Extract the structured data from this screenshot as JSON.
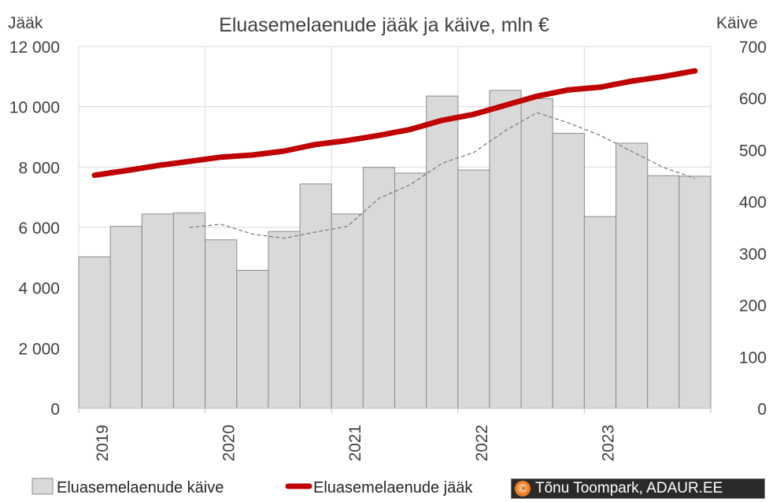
{
  "chart_data": {
    "type": "bar",
    "title": "Eluasemelaenude jääk ja käive, mln €",
    "ylabel": "Jääk",
    "y2label": "Käive",
    "ylim": [
      0,
      12000
    ],
    "y2lim": [
      0,
      700
    ],
    "yticks": [
      "0",
      "2 000",
      "4 000",
      "6 000",
      "8 000",
      "10 000",
      "12 000"
    ],
    "y2ticks": [
      "0",
      "100",
      "200",
      "300",
      "400",
      "500",
      "600",
      "700"
    ],
    "x": [
      "2019 Q1",
      "2019 Q2",
      "2019 Q3",
      "2019 Q4",
      "2020 Q1",
      "2020 Q2",
      "2020 Q3",
      "2020 Q4",
      "2021 Q1",
      "2021 Q2",
      "2021 Q3",
      "2021 Q4",
      "2022 Q1",
      "2022 Q2",
      "2022 Q3",
      "2022 Q4",
      "2023 Q1",
      "2023 Q2",
      "2023 Q3",
      "2023 Q4"
    ],
    "xtick_labels": [
      "2019",
      "2020",
      "2021",
      "2022",
      "2023"
    ],
    "grid": true,
    "legend_position": "bottom",
    "series": [
      {
        "name": "Eluasemelaenude käive",
        "type": "bar",
        "axis": "right",
        "color": "#d9d9d9",
        "values": [
          293,
          352,
          376,
          378,
          326,
          267,
          342,
          434,
          376,
          466,
          455,
          604,
          461,
          615,
          599,
          532,
          371,
          513,
          450,
          449
        ]
      },
      {
        "name": "Eluasemelaenude jääk",
        "type": "line",
        "axis": "left",
        "color": "#c00000",
        "values": [
          7730,
          7880,
          8050,
          8190,
          8330,
          8400,
          8530,
          8750,
          8880,
          9050,
          9250,
          9550,
          9750,
          10050,
          10350,
          10560,
          10650,
          10850,
          11000,
          11190
        ]
      },
      {
        "type": "line",
        "axis": "right",
        "style": "dashed",
        "color": "#7f7f7f",
        "values": [
          null,
          null,
          null,
          350,
          356,
          337,
          329,
          341,
          352,
          406,
          433,
          474,
          495,
          537,
          572,
          552,
          528,
          497,
          466,
          445
        ]
      }
    ]
  },
  "credit": {
    "symbol": "©",
    "text": "Tõnu Toompark, ADAUR.EE"
  }
}
